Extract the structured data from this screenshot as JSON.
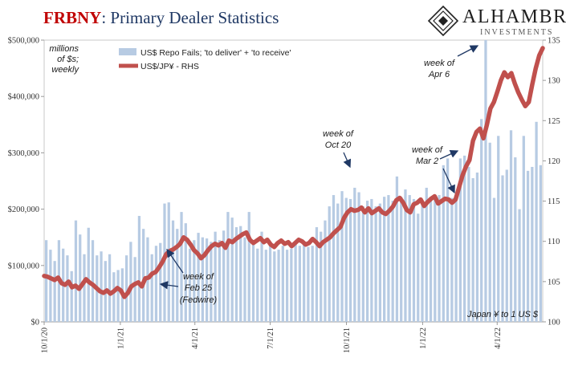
{
  "title": {
    "brand": "FRBNY",
    "rest": ": Primary Dealer Statistics"
  },
  "logo": {
    "name": "ALHAMBRA",
    "sub": "INVESTMENTS"
  },
  "units_note": [
    "millions",
    "of $s;",
    "weekly"
  ],
  "legend": [
    "US$ Repo Fails; 'to deliver' + 'to receive'",
    "US$/JP¥ - RHS"
  ],
  "footnote": "Japan ¥ to 1 US $",
  "annotations": [
    {
      "id": "feb25",
      "lines": [
        "week of",
        "Feb 25",
        "(Fedwire)"
      ]
    },
    {
      "id": "oct20",
      "lines": [
        "week of",
        "Oct 20"
      ]
    },
    {
      "id": "mar2",
      "lines": [
        "week of",
        "Mar 2"
      ]
    },
    {
      "id": "apr6",
      "lines": [
        "week of",
        "Apr 6"
      ]
    }
  ],
  "colors": {
    "bars": "#b7cbe3",
    "line": "#c0504d",
    "brand": "#c00000",
    "title": "#1f3864",
    "arrow": "#1f3864"
  },
  "chart_data": {
    "type": "bar",
    "x_start": "2020-10-01",
    "x_end": "2022-05-26",
    "x_ticks": [
      "10/1/20",
      "1/1/21",
      "4/1/21",
      "7/1/21",
      "10/1/21",
      "1/1/22",
      "4/1/22"
    ],
    "ylim": [
      0,
      500000
    ],
    "y_ticks": [
      "$0",
      "$100,000",
      "$200,000",
      "$300,000",
      "$400,000",
      "$500,000"
    ],
    "y2lim": [
      100,
      135
    ],
    "y2_ticks": [
      "100",
      "105",
      "110",
      "115",
      "120",
      "125",
      "130",
      "135"
    ],
    "series": [
      {
        "name": "US$ Repo Fails; 'to deliver' + 'to receive'",
        "kind": "bar",
        "axis": "left",
        "values": [
          145000,
          128000,
          108000,
          145000,
          130000,
          118000,
          90000,
          180000,
          155000,
          120000,
          167000,
          145000,
          118000,
          125000,
          108000,
          120000,
          88000,
          92000,
          95000,
          118000,
          142000,
          115000,
          188000,
          165000,
          150000,
          120000,
          135000,
          140000,
          210000,
          212000,
          180000,
          165000,
          195000,
          175000,
          130000,
          145000,
          158000,
          150000,
          148000,
          142000,
          160000,
          145000,
          162000,
          195000,
          185000,
          168000,
          170000,
          150000,
          195000,
          142000,
          130000,
          160000,
          128000,
          135000,
          125000,
          128000,
          135000,
          128000,
          130000,
          140000,
          135000,
          140000,
          133000,
          135000,
          168000,
          160000,
          180000,
          205000,
          225000,
          210000,
          232000,
          220000,
          218000,
          238000,
          230000,
          205000,
          215000,
          218000,
          205000,
          210000,
          222000,
          225000,
          215000,
          258000,
          222000,
          235000,
          225000,
          218000,
          192000,
          210000,
          238000,
          215000,
          220000,
          225000,
          278000,
          290000,
          220000,
          225000,
          290000,
          295000,
          275000,
          255000,
          265000,
          360000,
          500000,
          318000,
          220000,
          330000,
          260000,
          270000,
          340000,
          292000,
          200000,
          330000,
          268000,
          275000,
          355000,
          278000
        ]
      },
      {
        "name": "US$/JP¥ - RHS",
        "kind": "line",
        "axis": "right",
        "values": [
          105.7,
          105.6,
          105.4,
          105.2,
          105.5,
          104.8,
          104.6,
          105.0,
          104.3,
          104.5,
          104.1,
          104.7,
          105.3,
          104.9,
          104.6,
          104.2,
          103.8,
          103.6,
          103.9,
          103.5,
          103.8,
          104.2,
          103.9,
          103.1,
          103.6,
          104.4,
          104.7,
          104.9,
          104.4,
          105.4,
          105.5,
          106.0,
          106.2,
          106.8,
          107.5,
          108.4,
          108.8,
          109.0,
          109.3,
          109.7,
          110.5,
          110.2,
          109.6,
          108.9,
          108.5,
          107.9,
          108.3,
          108.9,
          109.4,
          109.7,
          109.5,
          109.8,
          109.2,
          110.1,
          109.9,
          110.3,
          110.6,
          110.9,
          111.1,
          110.2,
          109.8,
          110.1,
          110.4,
          109.9,
          110.2,
          109.6,
          109.3,
          109.8,
          110.1,
          109.7,
          109.9,
          109.4,
          109.8,
          110.2,
          110.0,
          109.6,
          109.8,
          110.3,
          109.9,
          109.4,
          109.9,
          110.2,
          110.5,
          111.0,
          111.4,
          111.8,
          112.9,
          113.6,
          114.0,
          113.8,
          113.9,
          114.2,
          113.6,
          114.1,
          113.5,
          113.8,
          114.1,
          113.6,
          113.4,
          113.8,
          114.3,
          115.1,
          115.4,
          114.8,
          113.9,
          113.6,
          114.6,
          114.8,
          115.2,
          114.4,
          114.9,
          115.3,
          115.6,
          114.7,
          115.0,
          115.3,
          115.2,
          114.8,
          115.2,
          116.7,
          118.2,
          119.3,
          120.1,
          122.5,
          123.6,
          124.0,
          122.8,
          124.5,
          126.5,
          127.3,
          128.6,
          130.0,
          131.0,
          130.4,
          130.9,
          129.6,
          128.5,
          127.6,
          126.8,
          127.3,
          129.5,
          131.5,
          133.1,
          134.0
        ]
      }
    ]
  }
}
